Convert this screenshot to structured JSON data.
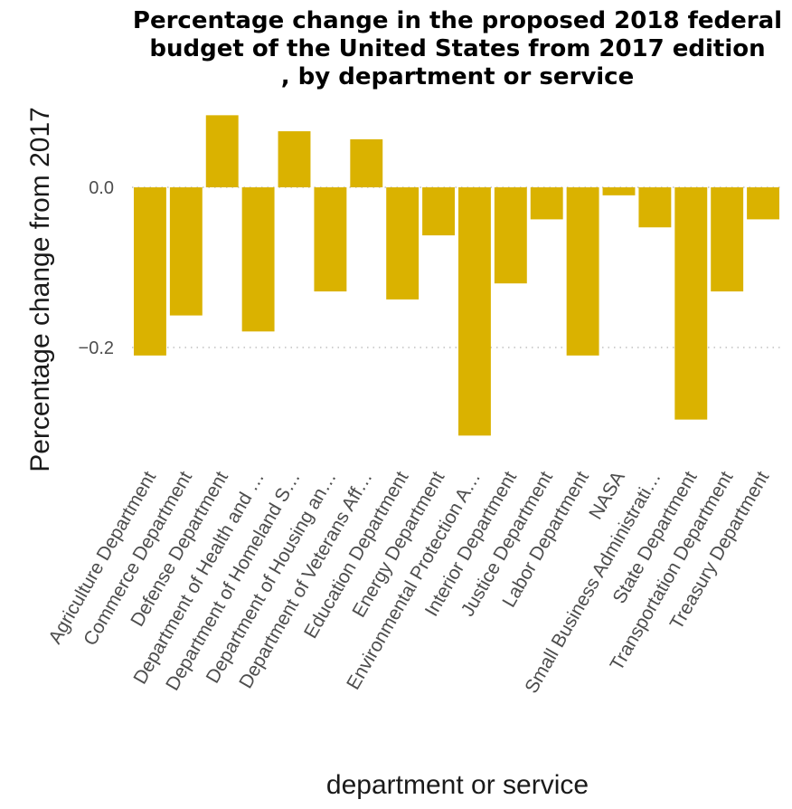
{
  "chart_data": {
    "type": "bar",
    "title_lines": [
      "Percentage change in the proposed 2018 federal",
      "budget of the United States from 2017 edition",
      ", by department or service"
    ],
    "xlabel": "department or service",
    "ylabel": "Percentage change from 2017",
    "ylim": [
      -0.31,
      0.1
    ],
    "yticks": [
      0.0,
      -0.2
    ],
    "ytick_labels": [
      "0.0",
      "−0.2"
    ],
    "grid": "horizontal-dotted",
    "bar_color": "#dab200",
    "categories": [
      "Agriculture Department",
      "Commerce Department",
      "Defense Department",
      "Department of Health and …",
      "Department of Homeland S…",
      "Department of Housing an…",
      "Department of Veterans Aff…",
      "Education Department",
      "Energy Department",
      "Environmental Protection A…",
      "Interior Department",
      "Justice Department",
      "Labor Department",
      "NASA",
      "Small Business Administrati…",
      "State Department",
      "Transportation Department",
      "Treasury Department"
    ],
    "values": [
      -0.21,
      -0.16,
      0.09,
      -0.18,
      0.07,
      -0.13,
      0.06,
      -0.14,
      -0.06,
      -0.31,
      -0.12,
      -0.04,
      -0.21,
      -0.01,
      -0.05,
      -0.29,
      -0.13,
      -0.04
    ]
  }
}
